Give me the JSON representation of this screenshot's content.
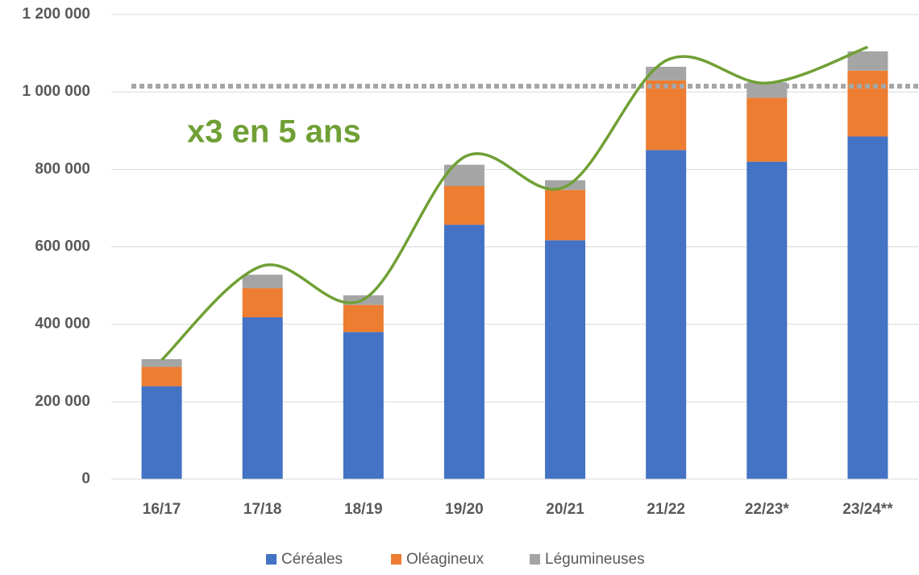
{
  "chart_data": {
    "type": "stacked_bar",
    "categories": [
      "16/17",
      "17/18",
      "18/19",
      "19/20",
      "20/21",
      "21/22",
      "22/23*",
      "23/24**"
    ],
    "series": [
      {
        "name": "Céréales",
        "color": "#4472c4",
        "values": [
          240000,
          418000,
          380000,
          657000,
          617000,
          850000,
          820000,
          885000
        ]
      },
      {
        "name": "Oléagineux",
        "color": "#ed7d31",
        "values": [
          50000,
          75000,
          70000,
          100000,
          130000,
          180000,
          165000,
          170000
        ]
      },
      {
        "name": "Légumineuses",
        "color": "#a5a5a5",
        "values": [
          20000,
          35000,
          25000,
          55000,
          25000,
          35000,
          40000,
          50000
        ]
      }
    ],
    "line": {
      "color": "#70a035",
      "values": [
        308000,
        551000,
        464000,
        832000,
        755000,
        1081000,
        1023000,
        1116000
      ]
    },
    "reference_line": {
      "value": 1015000,
      "color": "#a6a6a6"
    },
    "annotation": "x3 en 5 ans",
    "annotation_color": "#70a035",
    "ylim": [
      0,
      1200000
    ],
    "yticks": [
      0,
      {
        "value": 200000,
        "label": "200 000"
      },
      {
        "value": 400000,
        "label": "400 000"
      },
      {
        "value": 600000,
        "label": "600 000"
      },
      {
        "value": 800000,
        "label": "800 000"
      },
      {
        "value": 1000000,
        "label": "1 000 000"
      },
      {
        "value": 1200000,
        "label": "1 200 000"
      }
    ],
    "grid": true,
    "legend": "bottom"
  }
}
